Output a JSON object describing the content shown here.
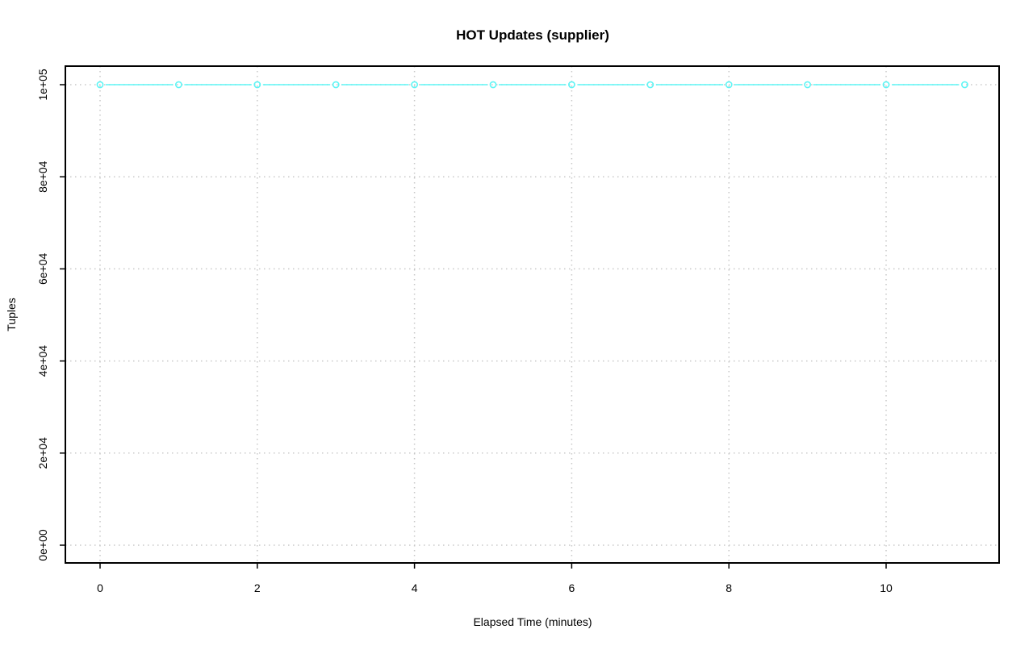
{
  "chart_data": {
    "type": "line",
    "title": "HOT Updates (supplier)",
    "xlabel": "Elapsed Time (minutes)",
    "ylabel": "Tuples",
    "xlim": [
      0,
      11
    ],
    "ylim": [
      0,
      100000
    ],
    "x_ticks": [
      0,
      2,
      4,
      6,
      8,
      10
    ],
    "x_tick_labels": [
      "0",
      "2",
      "4",
      "6",
      "8",
      "10"
    ],
    "y_ticks": [
      0,
      20000,
      40000,
      60000,
      80000,
      100000
    ],
    "y_tick_labels": [
      "0e+00",
      "2e+04",
      "4e+04",
      "6e+04",
      "8e+04",
      "1e+05"
    ],
    "grid": true,
    "series": [
      {
        "color": "#5ff5f5",
        "marker": "open-circle",
        "x": [
          0,
          1,
          2,
          3,
          4,
          5,
          6,
          7,
          8,
          9,
          10,
          11
        ],
        "y": [
          100000,
          100000,
          100000,
          100000,
          100000,
          100000,
          100000,
          100000,
          100000,
          100000,
          100000,
          100000
        ]
      }
    ]
  }
}
